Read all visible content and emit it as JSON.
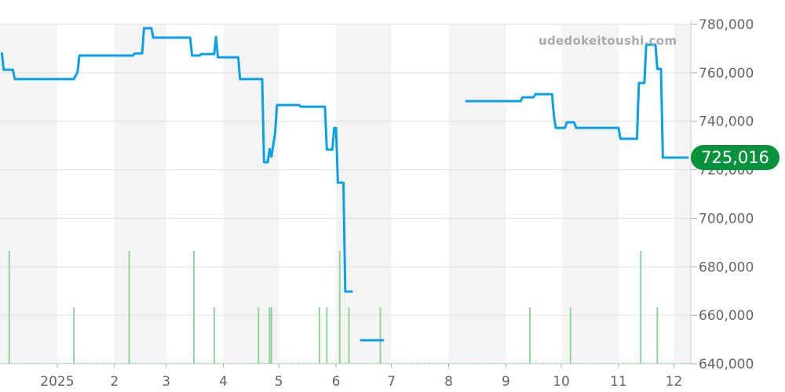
{
  "chart_data": {
    "type": "line",
    "watermark": "udedokeitoushi.com",
    "current_value_label": "725,016",
    "colors": {
      "price": "#0aa0e6",
      "volume": "#8fd49a",
      "badge": "#07923b",
      "band": "#f4f4f4"
    },
    "ylim": [
      640000,
      780000
    ],
    "y_ticks": [
      "640,000",
      "660,000",
      "680,000",
      "700,000",
      "720,000",
      "740,000",
      "760,000",
      "780,000"
    ],
    "y_tick_values": [
      640000,
      660000,
      680000,
      700000,
      720000,
      740000,
      760000,
      780000
    ],
    "x_range": [
      "2024-12-01",
      "2025-12-09"
    ],
    "x_ticks": [
      {
        "date": "2025-01-01",
        "label": "2025"
      },
      {
        "date": "2025-02-01",
        "label": "2"
      },
      {
        "date": "2025-03-01",
        "label": "3"
      },
      {
        "date": "2025-04-01",
        "label": "4"
      },
      {
        "date": "2025-05-01",
        "label": "5"
      },
      {
        "date": "2025-06-01",
        "label": "6"
      },
      {
        "date": "2025-07-01",
        "label": "7"
      },
      {
        "date": "2025-08-01",
        "label": "8"
      },
      {
        "date": "2025-09-01",
        "label": "9"
      },
      {
        "date": "2025-10-01",
        "label": "10"
      },
      {
        "date": "2025-11-01",
        "label": "11"
      },
      {
        "date": "2025-12-01",
        "label": "12"
      }
    ],
    "grid": true,
    "series": [
      {
        "segments": [
          [
            [
              "2024-12-02",
              768400
            ],
            [
              "2024-12-03",
              761250
            ],
            [
              "2024-12-08",
              761250
            ],
            [
              "2024-12-09",
              757400
            ],
            [
              "2025-01-10",
              757400
            ],
            [
              "2025-01-12",
              760300
            ],
            [
              "2025-01-13",
              767100
            ],
            [
              "2025-02-11",
              767100
            ],
            [
              "2025-02-12",
              768000
            ],
            [
              "2025-02-16",
              768000
            ],
            [
              "2025-02-17",
              778400
            ],
            [
              "2025-02-21",
              778400
            ],
            [
              "2025-02-22",
              774500
            ],
            [
              "2025-03-14",
              774500
            ],
            [
              "2025-03-15",
              767100
            ],
            [
              "2025-03-19",
              767100
            ],
            [
              "2025-03-20",
              767700
            ],
            [
              "2025-03-27",
              767700
            ],
            [
              "2025-03-28",
              774800
            ],
            [
              "2025-03-29",
              766400
            ],
            [
              "2025-04-09",
              766400
            ],
            [
              "2025-04-10",
              757400
            ],
            [
              "2025-04-22",
              757400
            ],
            [
              "2025-04-23",
              723100
            ],
            [
              "2025-04-25",
              723100
            ],
            [
              "2025-04-26",
              728600
            ],
            [
              "2025-04-27",
              725400
            ],
            [
              "2025-04-29",
              735100
            ],
            [
              "2025-04-30",
              746700
            ],
            [
              "2025-05-12",
              746700
            ],
            [
              "2025-05-13",
              746000
            ],
            [
              "2025-05-26",
              746000
            ],
            [
              "2025-05-27",
              728300
            ],
            [
              "2025-05-30",
              728300
            ],
            [
              "2025-05-31",
              737300
            ],
            [
              "2025-06-01",
              737300
            ],
            [
              "2025-06-02",
              714700
            ],
            [
              "2025-06-05",
              714700
            ],
            [
              "2025-06-06",
              669800
            ],
            [
              "2025-06-10",
              669800
            ]
          ],
          [
            [
              "2025-06-14",
              649700
            ],
            [
              "2025-06-27",
              649700
            ]
          ],
          [
            [
              "2025-08-10",
              748300
            ],
            [
              "2025-09-09",
              748300
            ],
            [
              "2025-09-10",
              749900
            ],
            [
              "2025-09-16",
              749900
            ],
            [
              "2025-09-17",
              751200
            ],
            [
              "2025-09-26",
              751200
            ],
            [
              "2025-09-27",
              742200
            ],
            [
              "2025-09-28",
              737300
            ],
            [
              "2025-10-03",
              737300
            ],
            [
              "2025-10-04",
              739600
            ],
            [
              "2025-10-08",
              739600
            ],
            [
              "2025-10-09",
              737300
            ],
            [
              "2025-11-01",
              737300
            ],
            [
              "2025-11-02",
              732800
            ],
            [
              "2025-11-11",
              732800
            ],
            [
              "2025-11-12",
              755800
            ],
            [
              "2025-11-15",
              755800
            ],
            [
              "2025-11-16",
              771600
            ],
            [
              "2025-11-21",
              771600
            ],
            [
              "2025-11-22",
              761600
            ],
            [
              "2025-11-24",
              761600
            ],
            [
              "2025-11-25",
              725016
            ],
            [
              "2025-12-09",
              725016
            ]
          ]
        ]
      }
    ],
    "volume_levels": [
      [
        "2024-12-06",
        2
      ],
      [
        "2025-01-10",
        1
      ],
      [
        "2025-02-09",
        2
      ],
      [
        "2025-03-16",
        2
      ],
      [
        "2025-03-27",
        1
      ],
      [
        "2025-04-20",
        1
      ],
      [
        "2025-04-26",
        1
      ],
      [
        "2025-04-27",
        1
      ],
      [
        "2025-05-23",
        1
      ],
      [
        "2025-05-27",
        1
      ],
      [
        "2025-06-03",
        2
      ],
      [
        "2025-06-08",
        1
      ],
      [
        "2025-06-25",
        1
      ],
      [
        "2025-09-14",
        1
      ],
      [
        "2025-10-06",
        1
      ],
      [
        "2025-11-13",
        2
      ],
      [
        "2025-11-22",
        1
      ]
    ]
  }
}
